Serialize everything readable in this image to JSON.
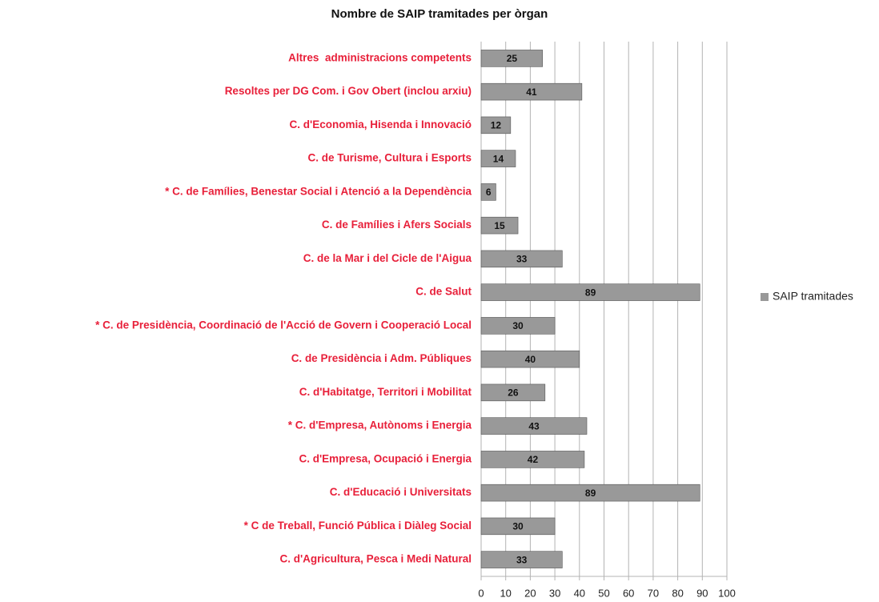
{
  "chart_data": {
    "type": "bar",
    "orientation": "horizontal",
    "title": "Nombre de SAIP tramitades per òrgan",
    "categories": [
      "Altres  administracions competents",
      "Resoltes per DG Com. i Gov Obert (inclou arxiu)",
      "C. d'Economia, Hisenda i Innovació",
      "C. de Turisme, Cultura i Esports",
      "* C. de Famílies, Benestar Social i Atenció a la Dependència",
      "C. de Famílies i Afers Socials",
      "C. de la Mar i del Cicle de l'Aigua",
      "C. de Salut",
      "* C. de Presidència, Coordinació de l'Acció de Govern i Cooperació Local",
      "C. de Presidència i Adm. Públiques",
      "C. d'Habitatge, Territori i Mobilitat",
      "* C. d'Empresa, Autònoms i Energia",
      "C. d'Empresa, Ocupació i Energia",
      "C. d'Educació i Universitats",
      "* C de Treball, Funció Pública i Diàleg Social",
      "C. d'Agricultura, Pesca i Medi Natural"
    ],
    "series": [
      {
        "name": "SAIP tramitades",
        "color": "#999999",
        "values": [
          25,
          41,
          12,
          14,
          6,
          15,
          33,
          89,
          30,
          40,
          26,
          43,
          42,
          89,
          30,
          33
        ]
      }
    ],
    "xlim": [
      0,
      100
    ],
    "xticks": [
      0,
      10,
      20,
      30,
      40,
      50,
      60,
      70,
      80,
      90,
      100
    ],
    "grid": true,
    "legend": "right",
    "category_color": "#e8203a"
  }
}
